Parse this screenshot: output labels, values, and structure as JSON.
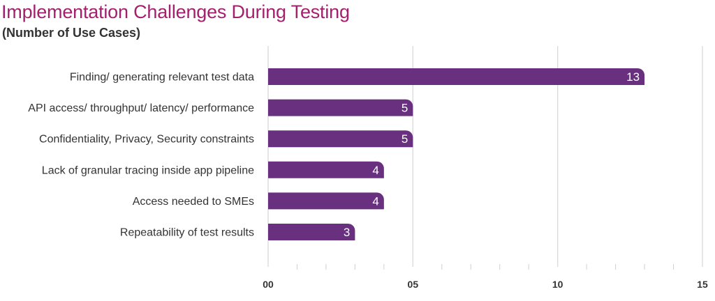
{
  "chart_data": {
    "type": "bar",
    "orientation": "horizontal",
    "title": "Implementation Challenges During Testing",
    "subtitle": "(Number of Use Cases)",
    "categories": [
      "Finding/ generating relevant test data",
      "API access/ throughput/ latency/ performance",
      "Confidentiality, Privacy, Security constraints",
      "Lack of granular tracing inside app pipeline",
      "Access needed to SMEs",
      "Repeatability of test results"
    ],
    "values": [
      13,
      5,
      5,
      4,
      4,
      3
    ],
    "value_labels": [
      "13",
      "5",
      "5",
      "4",
      "4",
      "3"
    ],
    "xlim": [
      0,
      15
    ],
    "x_ticks": [
      0,
      5,
      10,
      15
    ],
    "x_tick_labels": [
      "00",
      "05",
      "10",
      "15"
    ],
    "grid": true,
    "legend": "none",
    "bar_color": "#68307f",
    "title_color": "#a3206e"
  }
}
